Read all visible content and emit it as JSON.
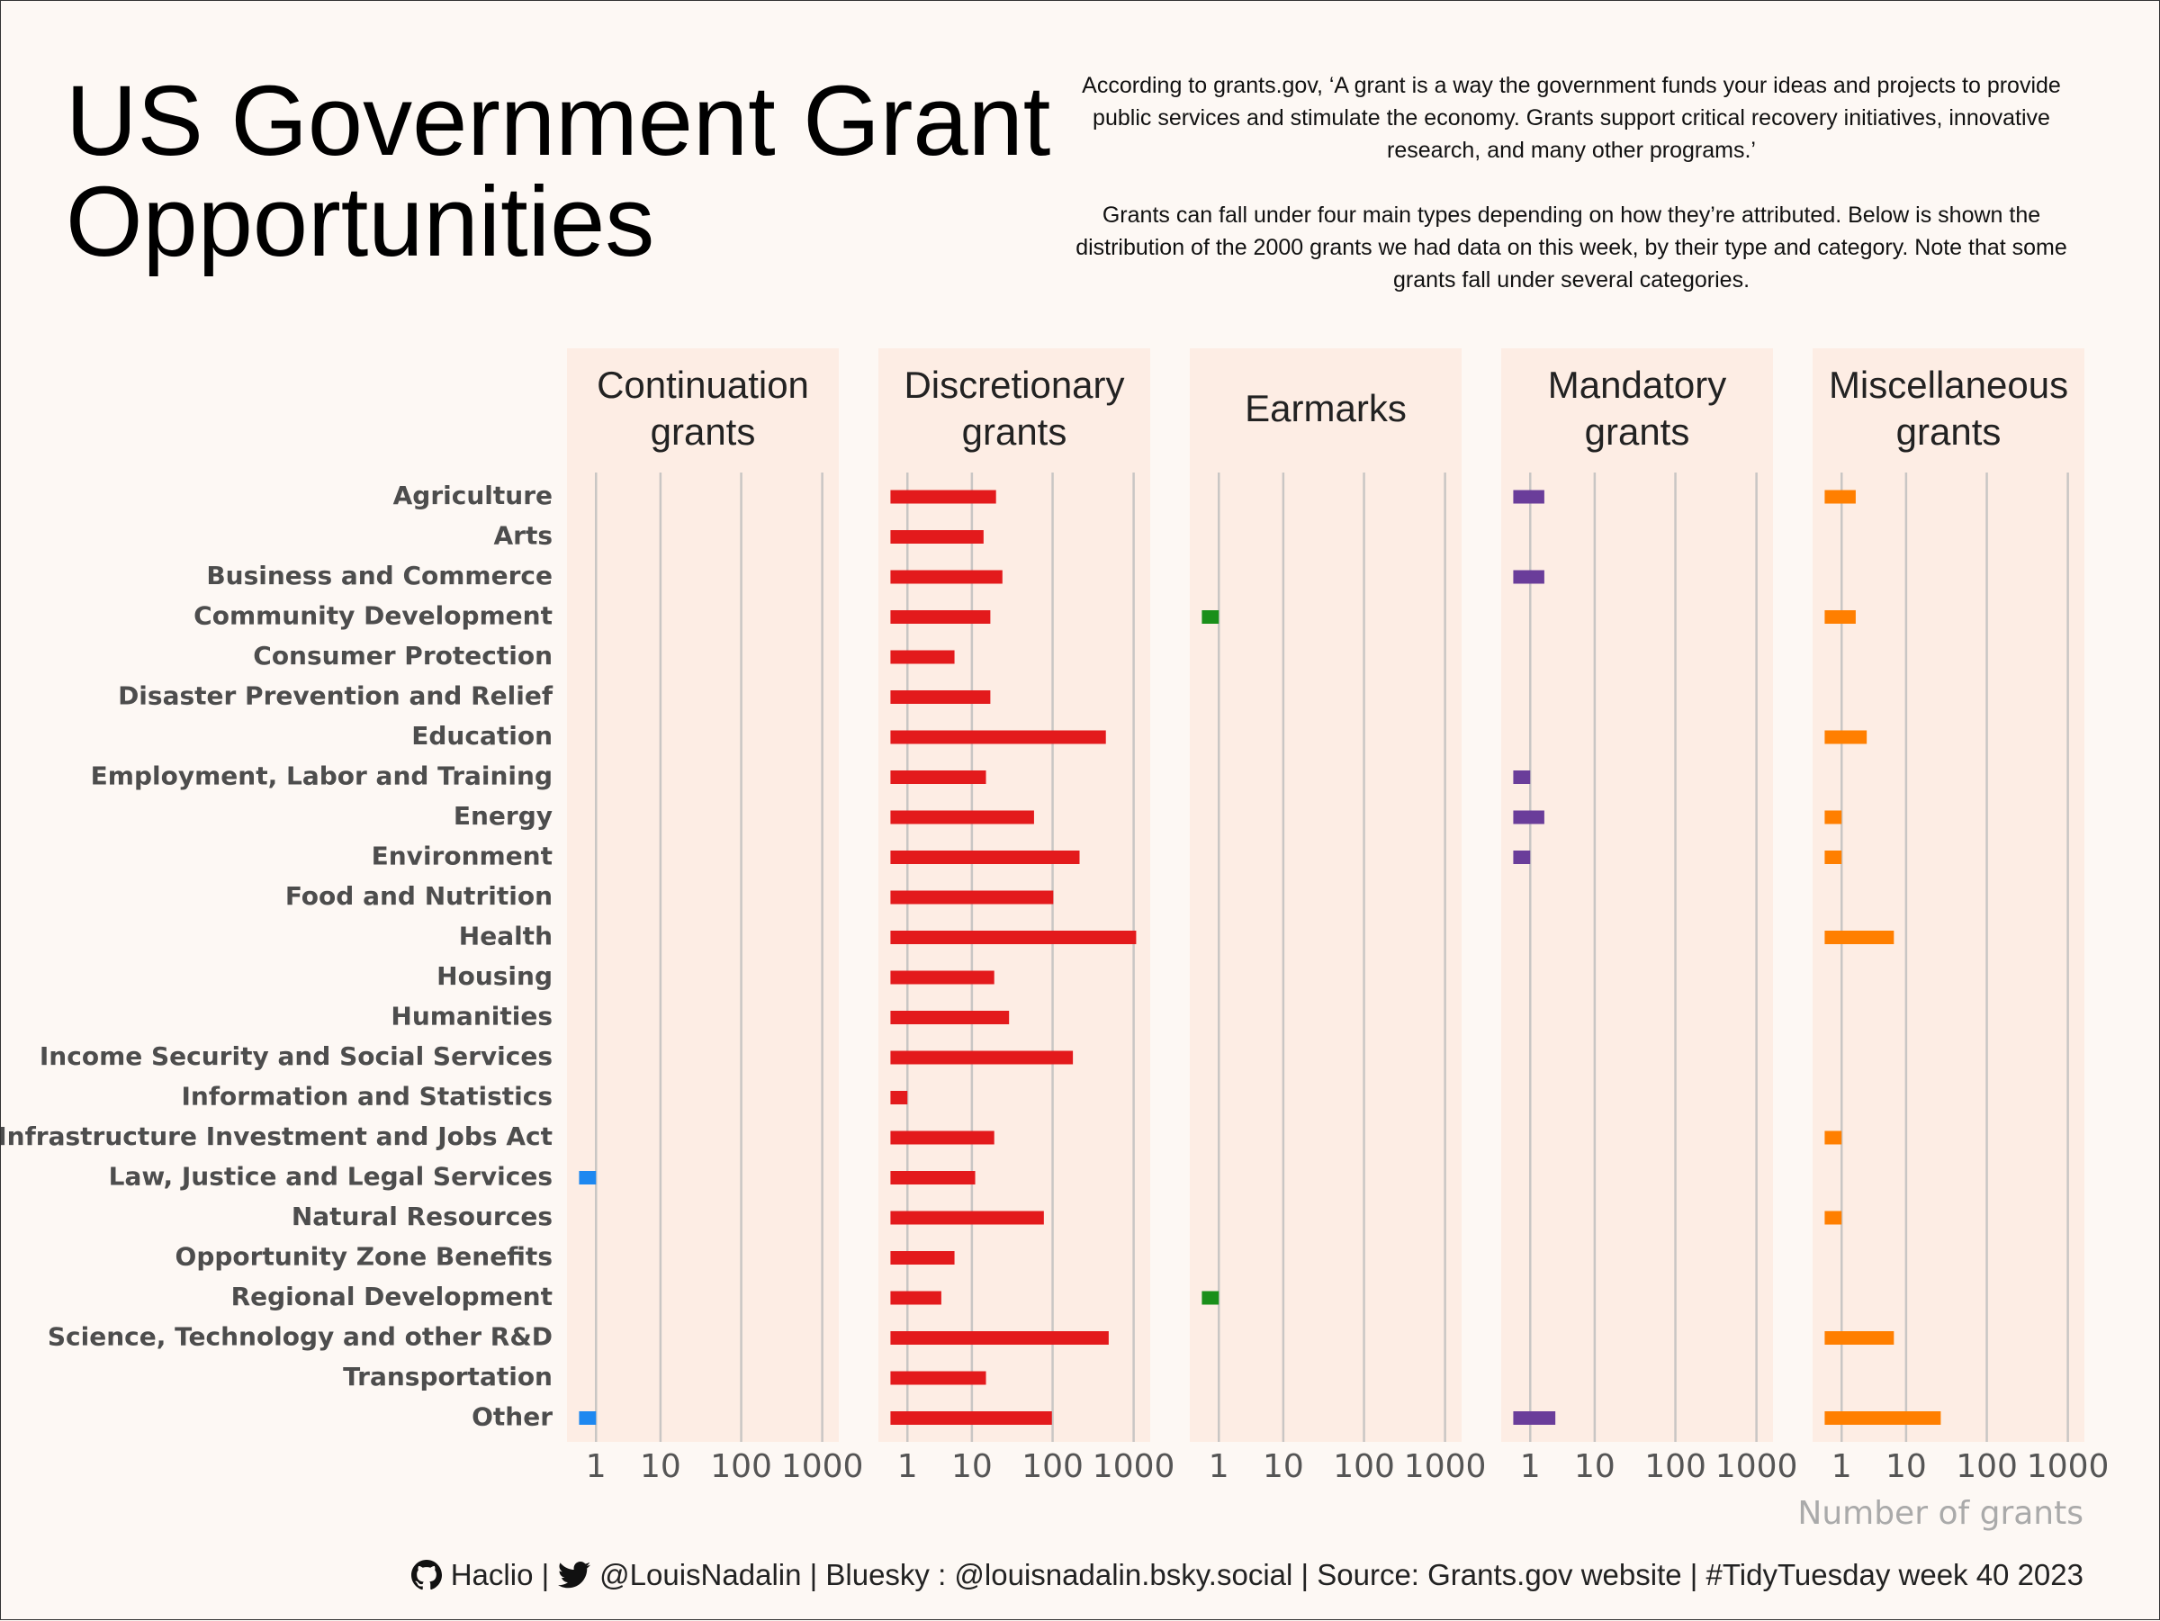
{
  "chart_data": {
    "type": "bar",
    "orientation": "horizontal",
    "title": "US Government Grant Opportunities",
    "subtitle": [
      "According to grants.gov, ‘A grant is a way the government funds your ideas and projects to provide public services and stimulate the economy. Grants support critical recovery initiatives, innovative research, and many other programs.’",
      "Grants can fall under four main types depending on how they’re attributed. Below is shown the distribution of the 2000 grants we had data on this week, by their type and category. Note that some grants fall under several categories."
    ],
    "categories": [
      "Agriculture",
      "Arts",
      "Business and Commerce",
      "Community Development",
      "Consumer Protection",
      "Disaster Prevention and Relief",
      "Education",
      "Employment, Labor and Training",
      "Energy",
      "Environment",
      "Food and Nutrition",
      "Health",
      "Housing",
      "Humanities",
      "Income Security and Social Services",
      "Information and Statistics",
      "Infrastructure Investment and Jobs Act",
      "Law, Justice and Legal Services",
      "Natural Resources",
      "Opportunity Zone Benefits",
      "Regional Development",
      "Science, Technology and other R&D",
      "Transportation",
      "Other"
    ],
    "series": [
      {
        "name": "Continuation grants",
        "color": "#1e88f0",
        "values": [
          null,
          null,
          null,
          null,
          null,
          null,
          null,
          null,
          null,
          null,
          null,
          null,
          null,
          null,
          null,
          null,
          null,
          1,
          null,
          null,
          null,
          null,
          null,
          1
        ]
      },
      {
        "name": "Discretionary grants",
        "color": "#e31a1c",
        "values": [
          20,
          14,
          24,
          17,
          6,
          17,
          454,
          15,
          59,
          215,
          102,
          1074,
          19,
          29,
          178,
          1,
          19,
          11,
          78,
          6,
          4,
          492,
          15,
          98
        ]
      },
      {
        "name": "Earmarks",
        "color": "#1a8f1a",
        "values": [
          null,
          null,
          null,
          1,
          null,
          null,
          null,
          null,
          null,
          null,
          null,
          null,
          null,
          null,
          null,
          null,
          null,
          null,
          null,
          null,
          1,
          null,
          null,
          null
        ]
      },
      {
        "name": "Mandatory grants",
        "color": "#6a3d9a",
        "values": [
          2,
          null,
          2,
          null,
          null,
          null,
          null,
          1,
          2,
          1,
          null,
          null,
          null,
          null,
          null,
          null,
          null,
          null,
          null,
          null,
          null,
          null,
          null,
          3
        ]
      },
      {
        "name": "Miscellaneous grants",
        "color": "#ff7f00",
        "values": [
          2,
          null,
          null,
          2,
          null,
          null,
          3,
          null,
          1,
          1,
          null,
          7,
          null,
          null,
          null,
          null,
          1,
          null,
          1,
          null,
          null,
          7,
          null,
          27
        ]
      }
    ],
    "x_scale": "pseudo_log",
    "xlim": [
      -0.7,
      1600
    ],
    "xticks": [
      1,
      10,
      100,
      1000
    ],
    "x_label": "Number of grants",
    "grid": true,
    "caption": [
      "Haclio |",
      "@LouisNadalin | Bluesky : @louisnadalin.bsky.social | Source: Grants.gov website | #TidyTuesday week 40 2023"
    ]
  }
}
